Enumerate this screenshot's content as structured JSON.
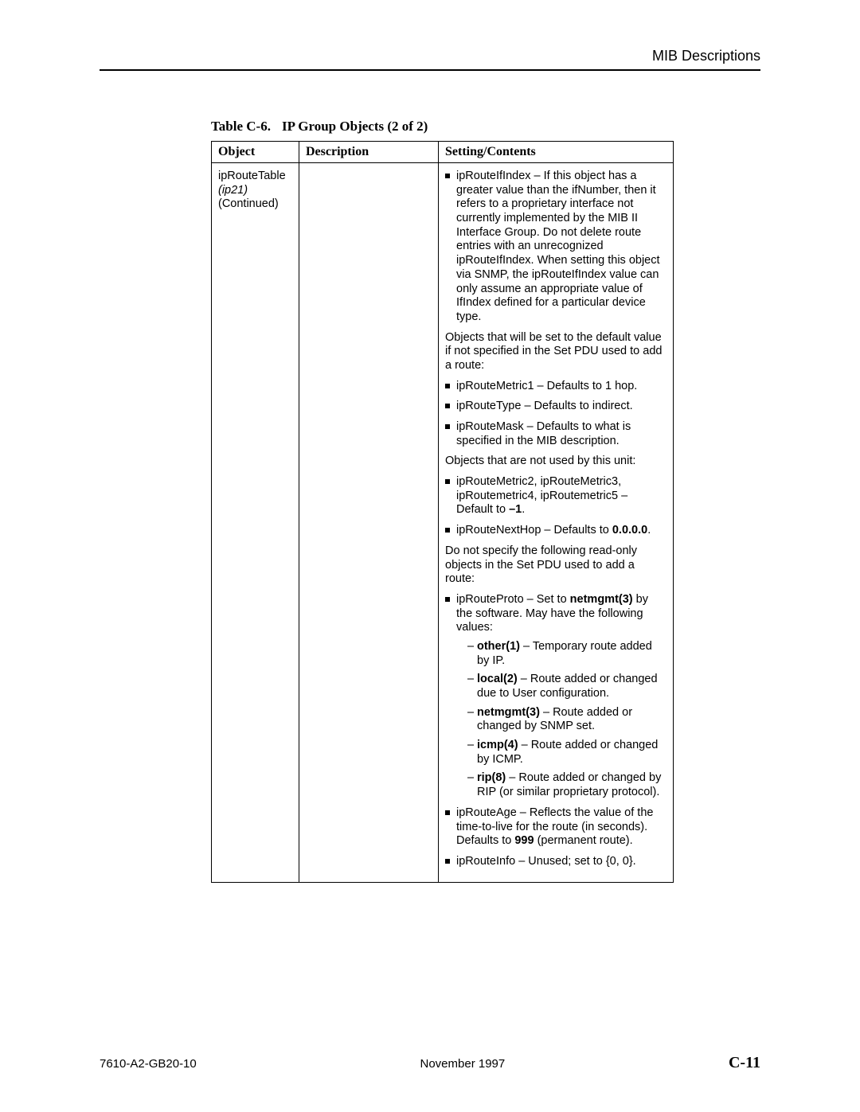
{
  "header": {
    "section_title": "MIB Descriptions"
  },
  "table": {
    "caption_label": "Table C-6.",
    "caption_title": "IP Group Objects (2 of 2)",
    "columns": {
      "object": "Object",
      "description": "Description",
      "setting": "Setting/Contents"
    },
    "row": {
      "object_name": "ipRouteTable",
      "object_id": "(ip21)",
      "object_status": "(Continued)"
    },
    "content": {
      "b1_text": "ipRouteIfIndex – If this object has a greater value than the ifNumber, then it refers to a proprietary interface not currently implemented by the MIB II Interface Group. Do not delete route entries with an unrecognized ipRouteIfIndex. When setting this object via SNMP, the ipRouteIfIndex value can only assume an appropriate value of IfIndex defined for a particular device type.",
      "p1": "Objects that will be set to the default value if not specified in the Set PDU used to add a route:",
      "b2": "ipRouteMetric1 – Defaults to 1 hop.",
      "b3": "ipRouteType – Defaults to indirect.",
      "b4": "ipRouteMask – Defaults to what is specified in the MIB description.",
      "p2": "Objects that are not used by this unit:",
      "b5_pre": "ipRouteMetric2, ipRouteMetric3, ipRoutemetric4, ipRoutemetric5 – Default to ",
      "b5_bold": "–1",
      "b5_post": ".",
      "b6_pre": "ipRouteNextHop – Defaults to ",
      "b6_bold": "0.0.0.0",
      "b6_post": ".",
      "p3": "Do not specify the following read-only objects in the Set PDU used to add a route:",
      "b7_pre": "ipRouteProto – Set to ",
      "b7_bold": "netmgmt(3)",
      "b7_post": " by the software. May have the following values:",
      "sub": {
        "s1_bold": "other(1)",
        "s1_rest": " – Temporary route added by IP.",
        "s2_bold": "local(2)",
        "s2_rest": " – Route added or changed due to User configuration.",
        "s3_bold": "netmgmt(3)",
        "s3_rest": " – Route added or changed by SNMP set.",
        "s4_bold": "icmp(4)",
        "s4_rest": " – Route added or changed by ICMP.",
        "s5_bold": "rip(8)",
        "s5_rest": " – Route added or changed by RIP (or similar proprietary protocol)."
      },
      "b8_pre": "ipRouteAge – Reflects the value of the time-to-live for the route (in seconds). Defaults to ",
      "b8_bold": "999",
      "b8_post": " (permanent route).",
      "b9": "ipRouteInfo – Unused; set to {0, 0}."
    }
  },
  "footer": {
    "doc_id": "7610-A2-GB20-10",
    "date": "November 1997",
    "page": "C-11"
  }
}
